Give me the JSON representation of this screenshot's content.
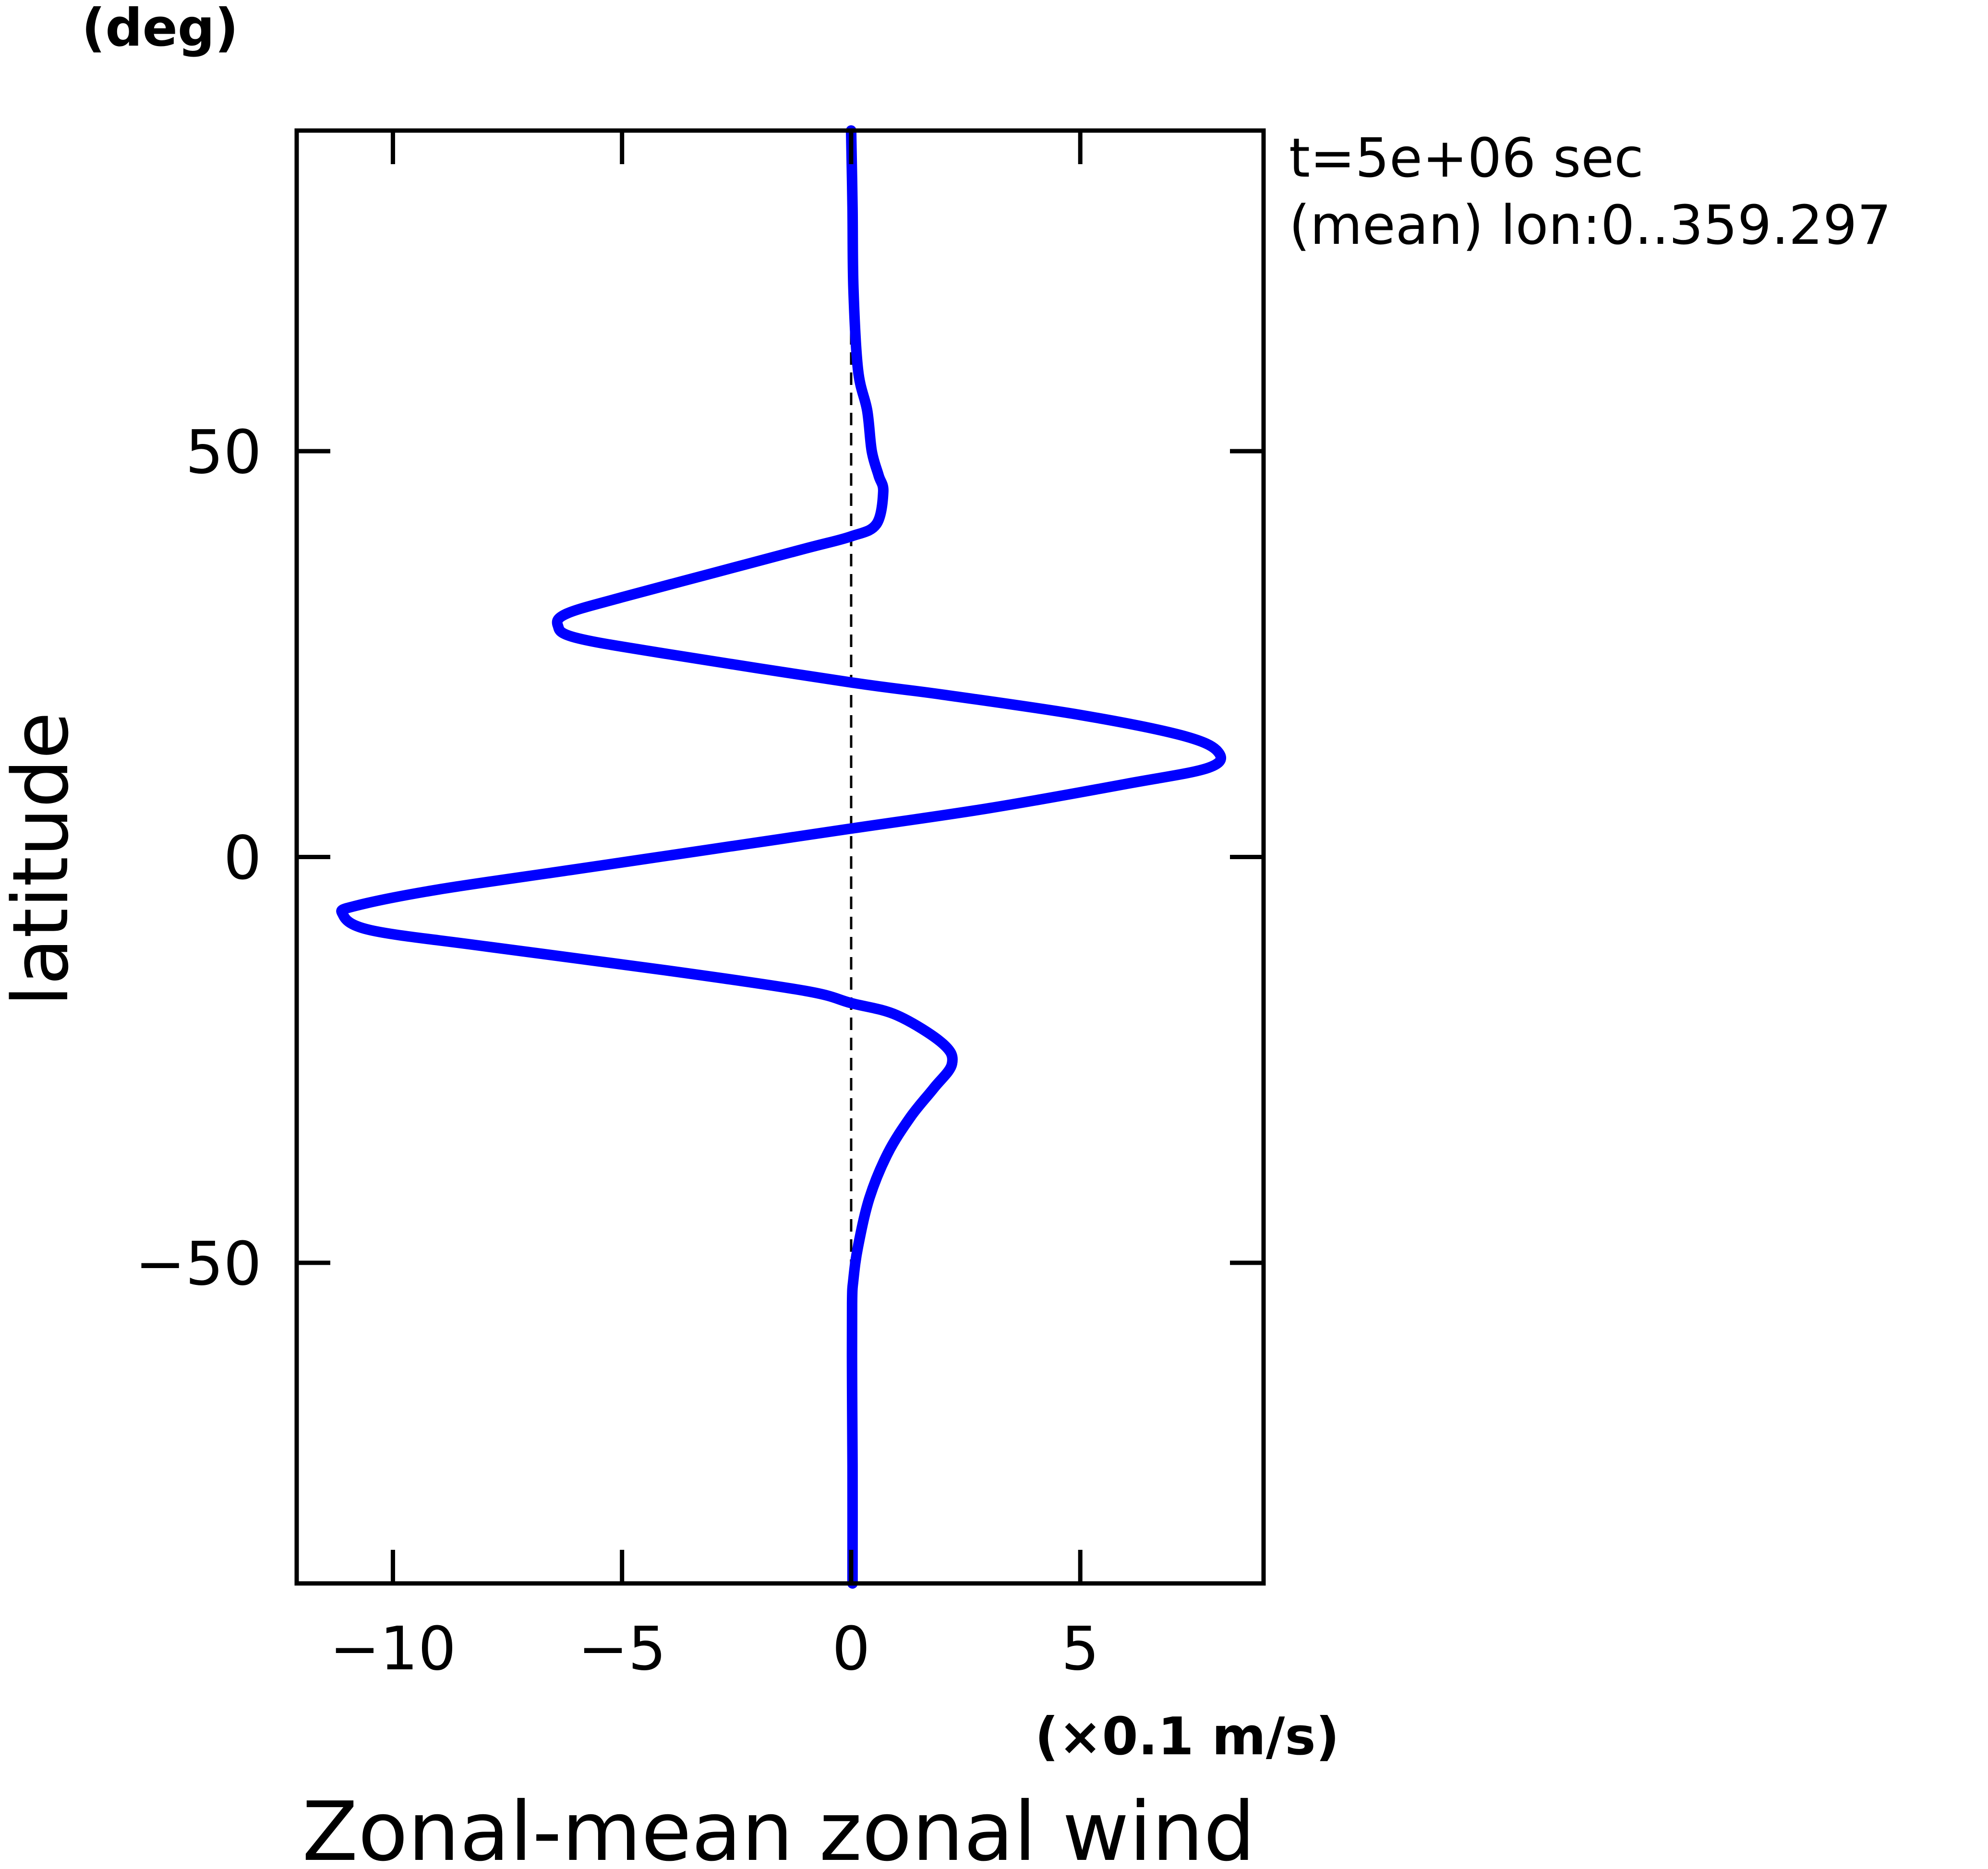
{
  "chart_data": {
    "type": "line",
    "title": "Zonal-mean zonal wind",
    "xlabel": "",
    "x_unit": "(×0.1 m/s)",
    "ylabel": "latitude",
    "y_unit": "(deg)",
    "annotations": [
      "t=5e+06 sec",
      "(mean) lon:0..359.297"
    ],
    "xlim": [
      -12.1,
      9.0
    ],
    "ylim": [
      -89.5,
      89.5
    ],
    "x_ticks": [
      -10,
      -5,
      0,
      5
    ],
    "x_tick_labels": [
      "−10",
      "−5",
      "0",
      "5"
    ],
    "y_ticks": [
      -50,
      0,
      50
    ],
    "y_tick_labels": [
      "−50",
      "0",
      "50"
    ],
    "grid": false,
    "reference_line": {
      "x": 0,
      "style": "dashed"
    },
    "series": [
      {
        "color": "#0000ff",
        "points": [
          [
            0.0,
            89.5
          ],
          [
            0.03,
            80
          ],
          [
            0.05,
            70
          ],
          [
            0.15,
            60
          ],
          [
            0.35,
            55
          ],
          [
            0.45,
            50
          ],
          [
            0.6,
            47
          ],
          [
            0.7,
            45
          ],
          [
            0.55,
            41
          ],
          [
            0.0,
            39.5
          ],
          [
            -1.0,
            38
          ],
          [
            -3.0,
            35
          ],
          [
            -5.0,
            32
          ],
          [
            -6.2,
            30
          ],
          [
            -6.4,
            28.5
          ],
          [
            -6.0,
            27
          ],
          [
            -4.0,
            25
          ],
          [
            0.0,
            21.5
          ],
          [
            2.0,
            20
          ],
          [
            5.0,
            17.5
          ],
          [
            7.2,
            15
          ],
          [
            8.0,
            13
          ],
          [
            7.8,
            11
          ],
          [
            6.0,
            9
          ],
          [
            3.0,
            6
          ],
          [
            0.0,
            3.5
          ],
          [
            -3.0,
            1
          ],
          [
            -6.0,
            -1.5
          ],
          [
            -9.0,
            -4
          ],
          [
            -10.8,
            -6
          ],
          [
            -11.1,
            -7
          ],
          [
            -10.5,
            -9
          ],
          [
            -8.0,
            -11
          ],
          [
            -4.0,
            -14
          ],
          [
            -1.0,
            -16.5
          ],
          [
            0.0,
            -18
          ],
          [
            1.0,
            -19.5
          ],
          [
            2.0,
            -23
          ],
          [
            2.2,
            -25.5
          ],
          [
            1.8,
            -28.5
          ],
          [
            1.3,
            -32
          ],
          [
            0.8,
            -36.5
          ],
          [
            0.4,
            -42
          ],
          [
            0.15,
            -48
          ],
          [
            0.05,
            -52
          ],
          [
            0.02,
            -55
          ],
          [
            0.02,
            -65
          ],
          [
            0.03,
            -75
          ],
          [
            0.03,
            -89.5
          ]
        ]
      }
    ]
  }
}
